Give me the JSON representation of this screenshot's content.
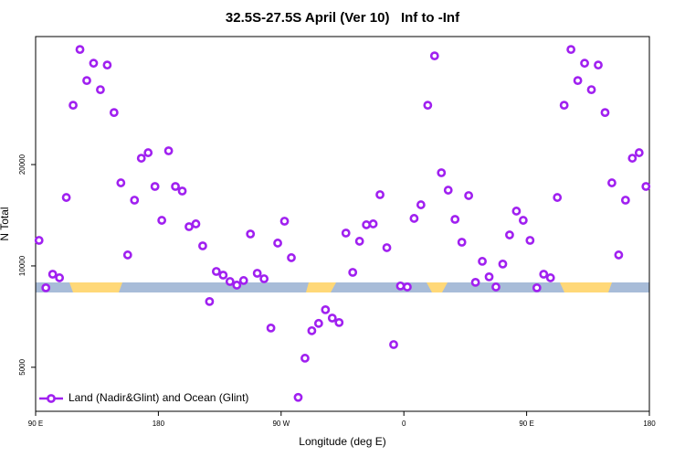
{
  "chart_data": {
    "type": "scatter",
    "title": "32.5S-27.5S April (Ver 10)   Inf to -Inf",
    "x_label": "Longitude (deg E)",
    "y_label": "N Total",
    "log_y": true,
    "legend": "bottom-left",
    "xlim": [
      90,
      540
    ],
    "ylim": [
      3700,
      48000
    ],
    "xticks": [
      {
        "value": 90,
        "label": "90 E"
      },
      {
        "value": 180,
        "label": "180"
      },
      {
        "value": 270,
        "label": "90 W"
      },
      {
        "value": 360,
        "label": "0"
      },
      {
        "value": 450,
        "label": "90 E"
      },
      {
        "value": 540,
        "label": "180"
      }
    ],
    "yticks": [
      5000,
      10000,
      20000
    ],
    "series": [
      {
        "name": "Land (Nadir&Glint) and Ocean (Glint)",
        "color": "#a020f0",
        "x": [
          92.5,
          97.5,
          102.5,
          107.5,
          112.5,
          117.5,
          122.5,
          127.5,
          132.5,
          137.5,
          142.5,
          147.5,
          152.5,
          157.5,
          162.5,
          167.5,
          172.5,
          177.5,
          182.5,
          187.5,
          192.5,
          197.5,
          202.5,
          207.5,
          212.5,
          217.5,
          222.5,
          227.5,
          232.5,
          237.5,
          242.5,
          247.5,
          252.5,
          257.5,
          262.5,
          267.5,
          272.5,
          277.5,
          282.5,
          287.5,
          292.5,
          297.5,
          302.5,
          307.5,
          312.5,
          317.5,
          322.5,
          327.5,
          332.5,
          337.5,
          342.5,
          347.5,
          352.5,
          357.5,
          362.5,
          367.5,
          372.5,
          377.5,
          382.5,
          387.5,
          392.5,
          397.5,
          402.5,
          407.5,
          412.5,
          417.5,
          422.5,
          427.5,
          432.5,
          437.5,
          442.5,
          447.5,
          452.5,
          457.5,
          462.5,
          467.5,
          472.5,
          477.5,
          482.5,
          487.5,
          492.5,
          497.5,
          502.5,
          507.5,
          512.5,
          517.5,
          522.5,
          527.5,
          532.5,
          537.5
        ],
        "values": [
          11910,
          8610,
          9450,
          9220,
          15970,
          30010,
          43940,
          35530,
          40000,
          33380,
          39510,
          28550,
          17650,
          10780,
          15680,
          20890,
          21690,
          17220,
          13660,
          21970,
          17220,
          16690,
          13080,
          13330,
          11470,
          7840,
          9630,
          9390,
          8990,
          8770,
          9050,
          12440,
          9510,
          9160,
          6540,
          11690,
          13580,
          10580,
          4070,
          5320,
          6420,
          6750,
          7410,
          7000,
          6790,
          12520,
          9570,
          11840,
          13250,
          13330,
          16280,
          11330,
          5840,
          8720,
          8660,
          13840,
          15190,
          30010,
          42060,
          18910,
          16790,
          13750,
          11760,
          16180,
          8940,
          10320,
          9280,
          8660,
          10130,
          12360,
          14550,
          13660,
          11910,
          8610,
          9450,
          9220,
          15970,
          30010,
          43940,
          35530,
          40000,
          33380,
          39510,
          28550,
          17650,
          10780,
          15680,
          20890,
          21690,
          17220
        ]
      }
    ]
  }
}
